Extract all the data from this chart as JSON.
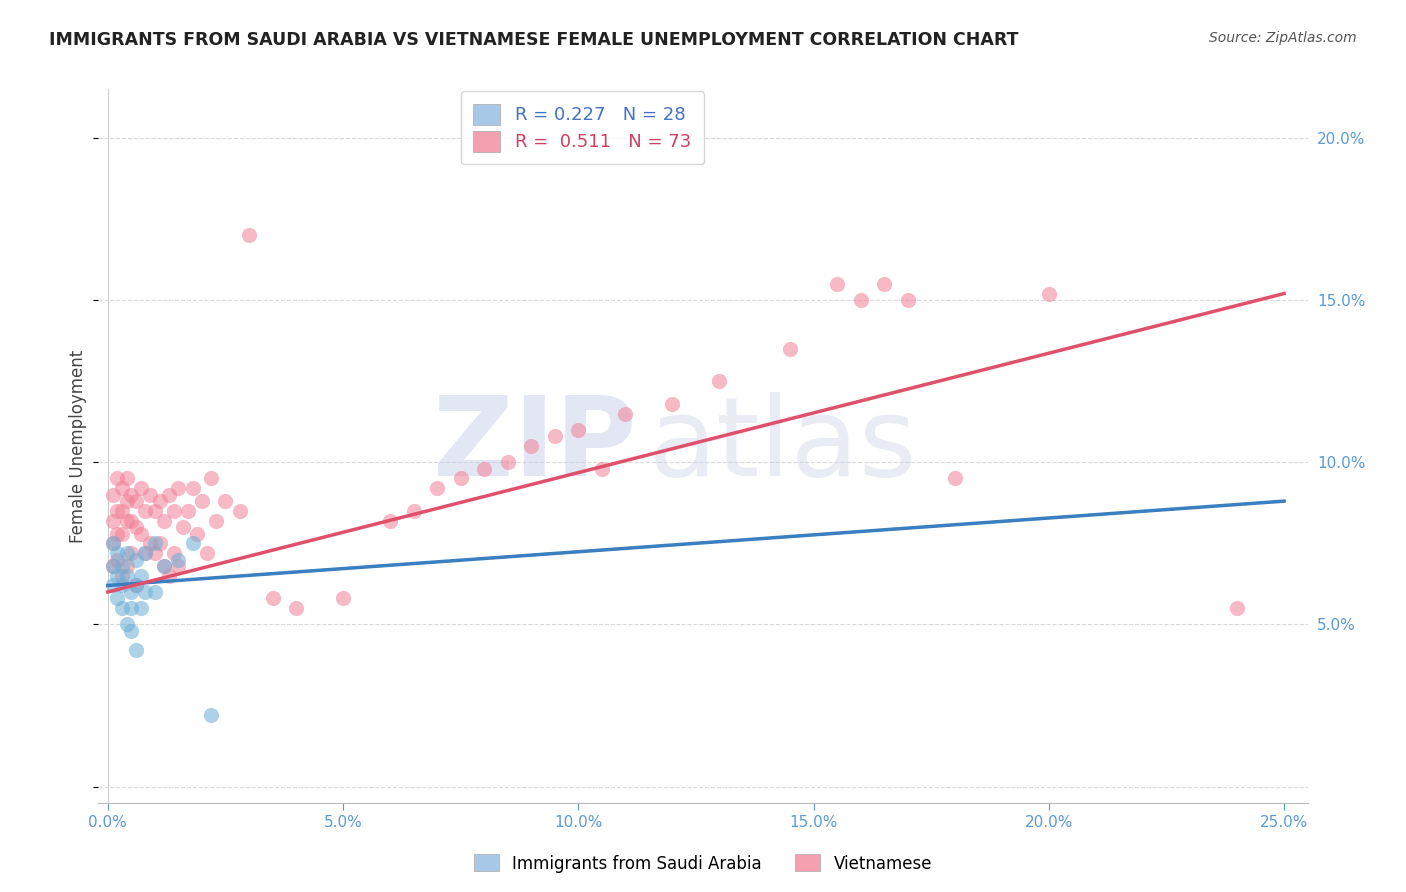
{
  "title": "IMMIGRANTS FROM SAUDI ARABIA VS VIETNAMESE FEMALE UNEMPLOYMENT CORRELATION CHART",
  "source": "Source: ZipAtlas.com",
  "ylabel": "Female Unemployment",
  "xlim": [
    -0.002,
    0.255
  ],
  "ylim": [
    -0.005,
    0.215
  ],
  "xticks": [
    0.0,
    0.05,
    0.1,
    0.15,
    0.2,
    0.25
  ],
  "xticklabels": [
    "0.0%",
    "5.0%",
    "10.0%",
    "15.0%",
    "20.0%",
    "25.0%"
  ],
  "yticks": [
    0.0,
    0.05,
    0.1,
    0.15,
    0.2
  ],
  "right_yticklabels": [
    "",
    "5.0%",
    "10.0%",
    "15.0%",
    "20.0%"
  ],
  "saudi_color": "#6baed6",
  "vietnamese_color": "#f08096",
  "saudi_scatter": [
    [
      0.001,
      0.075
    ],
    [
      0.001,
      0.068
    ],
    [
      0.001,
      0.062
    ],
    [
      0.002,
      0.072
    ],
    [
      0.002,
      0.065
    ],
    [
      0.002,
      0.058
    ],
    [
      0.003,
      0.068
    ],
    [
      0.003,
      0.062
    ],
    [
      0.003,
      0.055
    ],
    [
      0.004,
      0.072
    ],
    [
      0.004,
      0.065
    ],
    [
      0.004,
      0.05
    ],
    [
      0.005,
      0.06
    ],
    [
      0.005,
      0.055
    ],
    [
      0.005,
      0.048
    ],
    [
      0.006,
      0.07
    ],
    [
      0.006,
      0.062
    ],
    [
      0.006,
      0.042
    ],
    [
      0.007,
      0.065
    ],
    [
      0.007,
      0.055
    ],
    [
      0.008,
      0.072
    ],
    [
      0.008,
      0.06
    ],
    [
      0.01,
      0.075
    ],
    [
      0.01,
      0.06
    ],
    [
      0.012,
      0.068
    ],
    [
      0.015,
      0.07
    ],
    [
      0.018,
      0.075
    ],
    [
      0.022,
      0.022
    ]
  ],
  "vietnamese_scatter": [
    [
      0.001,
      0.09
    ],
    [
      0.001,
      0.082
    ],
    [
      0.001,
      0.075
    ],
    [
      0.001,
      0.068
    ],
    [
      0.002,
      0.095
    ],
    [
      0.002,
      0.085
    ],
    [
      0.002,
      0.078
    ],
    [
      0.002,
      0.07
    ],
    [
      0.003,
      0.092
    ],
    [
      0.003,
      0.085
    ],
    [
      0.003,
      0.078
    ],
    [
      0.003,
      0.065
    ],
    [
      0.004,
      0.095
    ],
    [
      0.004,
      0.088
    ],
    [
      0.004,
      0.082
    ],
    [
      0.004,
      0.068
    ],
    [
      0.005,
      0.09
    ],
    [
      0.005,
      0.082
    ],
    [
      0.005,
      0.072
    ],
    [
      0.006,
      0.088
    ],
    [
      0.006,
      0.08
    ],
    [
      0.006,
      0.062
    ],
    [
      0.007,
      0.092
    ],
    [
      0.007,
      0.078
    ],
    [
      0.008,
      0.085
    ],
    [
      0.008,
      0.072
    ],
    [
      0.009,
      0.09
    ],
    [
      0.009,
      0.075
    ],
    [
      0.01,
      0.085
    ],
    [
      0.01,
      0.072
    ],
    [
      0.011,
      0.088
    ],
    [
      0.011,
      0.075
    ],
    [
      0.012,
      0.082
    ],
    [
      0.012,
      0.068
    ],
    [
      0.013,
      0.09
    ],
    [
      0.013,
      0.065
    ],
    [
      0.014,
      0.085
    ],
    [
      0.014,
      0.072
    ],
    [
      0.015,
      0.092
    ],
    [
      0.015,
      0.068
    ],
    [
      0.016,
      0.08
    ],
    [
      0.017,
      0.085
    ],
    [
      0.018,
      0.092
    ],
    [
      0.019,
      0.078
    ],
    [
      0.02,
      0.088
    ],
    [
      0.021,
      0.072
    ],
    [
      0.022,
      0.095
    ],
    [
      0.023,
      0.082
    ],
    [
      0.025,
      0.088
    ],
    [
      0.028,
      0.085
    ],
    [
      0.03,
      0.17
    ],
    [
      0.035,
      0.058
    ],
    [
      0.04,
      0.055
    ],
    [
      0.05,
      0.058
    ],
    [
      0.06,
      0.082
    ],
    [
      0.065,
      0.085
    ],
    [
      0.07,
      0.092
    ],
    [
      0.075,
      0.095
    ],
    [
      0.08,
      0.098
    ],
    [
      0.085,
      0.1
    ],
    [
      0.09,
      0.105
    ],
    [
      0.095,
      0.108
    ],
    [
      0.1,
      0.11
    ],
    [
      0.105,
      0.098
    ],
    [
      0.11,
      0.115
    ],
    [
      0.12,
      0.118
    ],
    [
      0.13,
      0.125
    ],
    [
      0.145,
      0.135
    ],
    [
      0.155,
      0.155
    ],
    [
      0.16,
      0.15
    ],
    [
      0.165,
      0.155
    ],
    [
      0.17,
      0.15
    ],
    [
      0.18,
      0.095
    ],
    [
      0.2,
      0.152
    ],
    [
      0.24,
      0.055
    ]
  ],
  "saudi_trendline": {
    "x": [
      0.0,
      0.25
    ],
    "y": [
      0.062,
      0.088
    ]
  },
  "vietnamese_trendline": {
    "x": [
      0.0,
      0.25
    ],
    "y": [
      0.06,
      0.152
    ]
  },
  "background_color": "#ffffff",
  "grid_color": "#d8d8d8",
  "title_color": "#222222",
  "tick_color": "#5b9bd5"
}
